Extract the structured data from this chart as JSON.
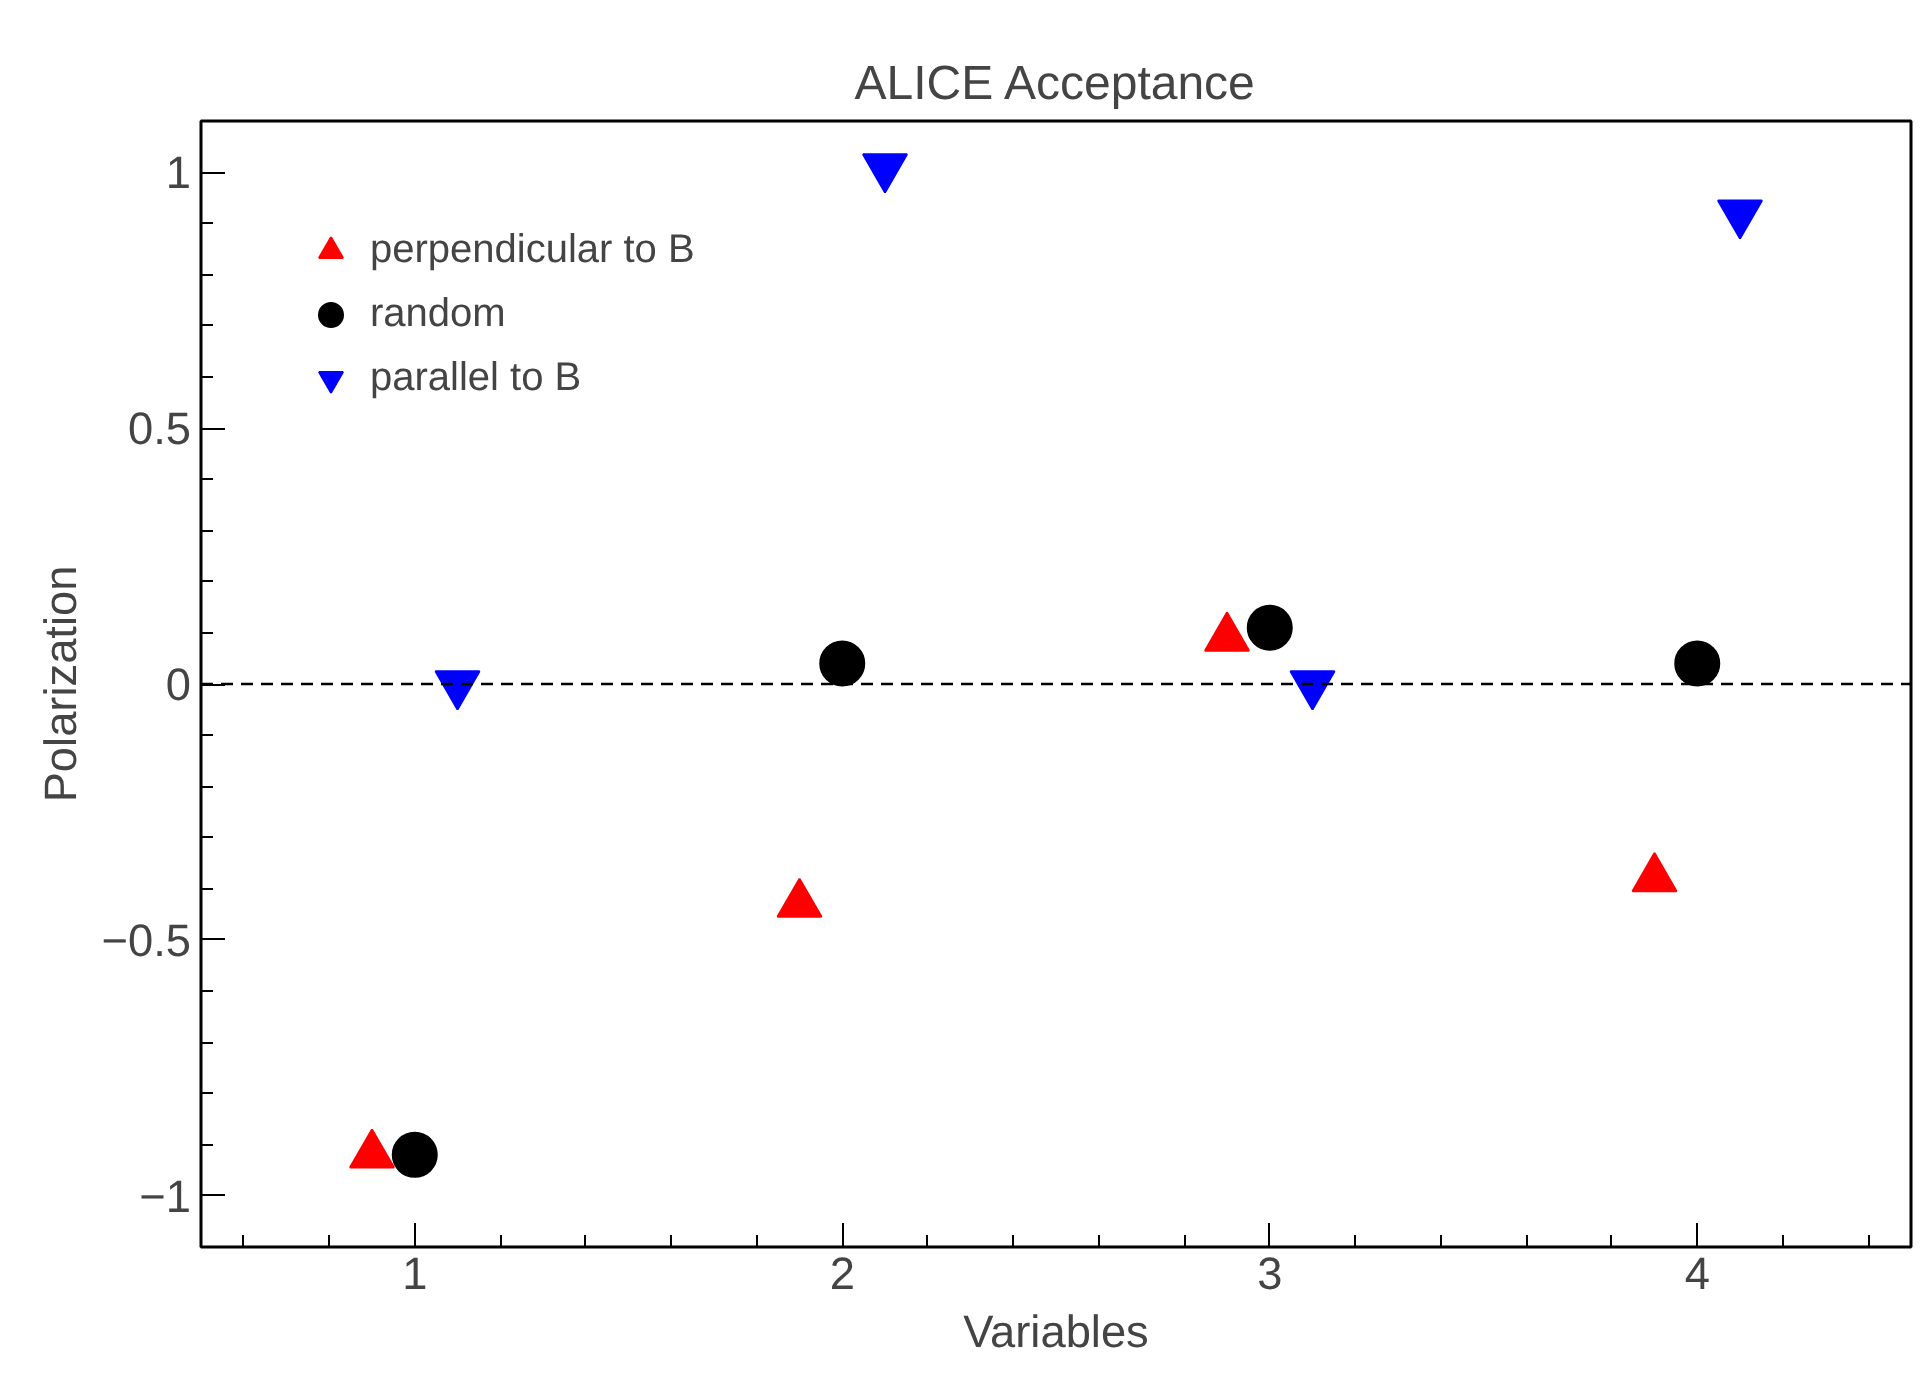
{
  "chart_data": {
    "type": "scatter",
    "title": "ALICE Acceptance",
    "xlabel": "Variables",
    "ylabel": "Polarization",
    "xlim": [
      0.5,
      4.5
    ],
    "xticks": [
      1,
      2,
      3,
      4
    ],
    "ylim": [
      -1.1,
      1.1
    ],
    "yticks": [
      -1,
      -0.5,
      0,
      0.5,
      1
    ],
    "grid": false,
    "legend": "top left",
    "ref_lines": [
      {
        "axis": "y",
        "value": 0,
        "color": "#000000",
        "line_style": "dashed"
      }
    ],
    "series": [
      {
        "name": "perpendicular to B",
        "color": "#ff0000",
        "marker": "triangle",
        "x": [
          0.9,
          1.9,
          2.9,
          3.9
        ],
        "values": [
          -0.92,
          -0.43,
          0.09,
          -0.38
        ]
      },
      {
        "name": "random",
        "color": "#000000",
        "marker": "circle",
        "x": [
          1,
          2,
          3,
          4
        ],
        "values": [
          -0.92,
          0.04,
          0.11,
          0.04
        ]
      },
      {
        "name": "parallel to B",
        "color": "#0000ff",
        "x": [
          1.1,
          2.1,
          3.1,
          4.1
        ],
        "values": [
          0.0,
          1.01,
          0.0,
          0.92
        ]
      }
    ]
  }
}
